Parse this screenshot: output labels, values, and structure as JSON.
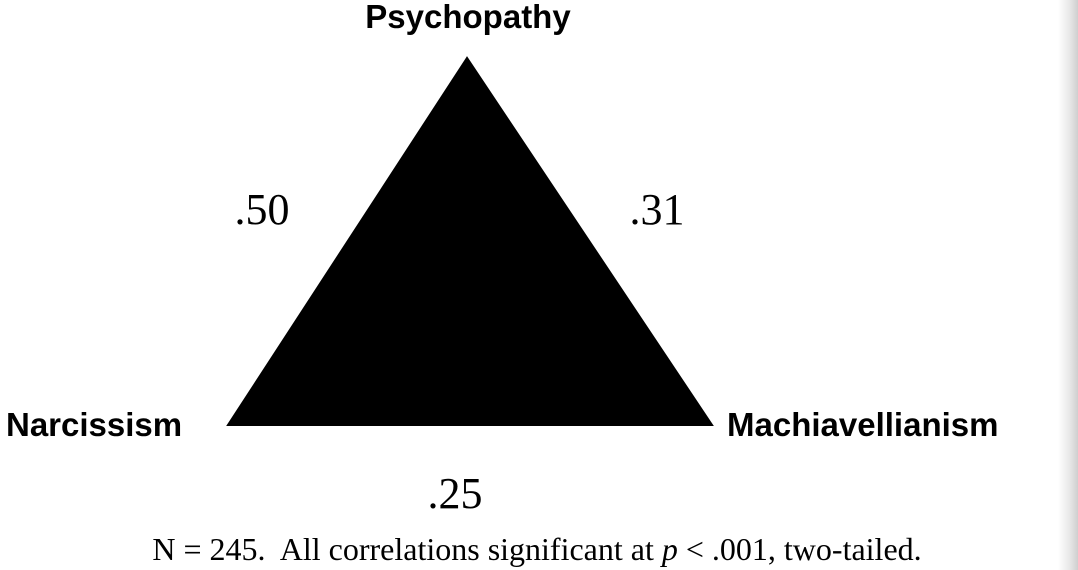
{
  "nodes": {
    "top": "Psychopathy",
    "left": "Narcissism",
    "right": "Machiavellianism"
  },
  "correlations": {
    "psychopathy_narcissism": ".50",
    "psychopathy_machiavellianism": ".31",
    "narcissism_machiavellianism": ".25"
  },
  "note": {
    "prefix": "N = 245.  All correlations significant at ",
    "p_symbol": "p",
    "suffix": " < .001, two-tailed."
  },
  "colors": {
    "triangle_fill": "#000000",
    "text": "#000000",
    "background": "#ffffff"
  }
}
